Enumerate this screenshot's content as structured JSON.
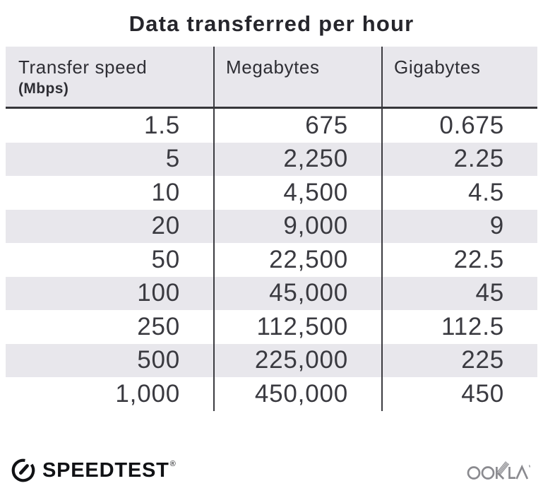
{
  "title": "Data transferred per hour",
  "table": {
    "columns": [
      {
        "label": "Transfer speed",
        "sublabel": "(Mbps)"
      },
      {
        "label": "Megabytes",
        "sublabel": ""
      },
      {
        "label": "Gigabytes",
        "sublabel": ""
      }
    ],
    "rows": [
      [
        "1.5",
        "675",
        "0.675"
      ],
      [
        "5",
        "2,250",
        "2.25"
      ],
      [
        "10",
        "4,500",
        "4.5"
      ],
      [
        "20",
        "9,000",
        "9"
      ],
      [
        "50",
        "22,500",
        "22.5"
      ],
      [
        "100",
        "45,000",
        "45"
      ],
      [
        "250",
        "112,500",
        "112.5"
      ],
      [
        "500",
        "225,000",
        "225"
      ],
      [
        "1,000",
        "450,000",
        "450"
      ]
    ]
  },
  "footer": {
    "speedtest_label": "SPEEDTEST",
    "registered_mark": "®",
    "ookla_label": "OOKLA",
    "speedtest_icon": "speedometer-gauge-icon",
    "ookla_icon": "ookla-wordmark-icon"
  },
  "colors": {
    "header_bg": "#e8e7ec",
    "stripe_bg": "#e8e7ec",
    "title_color": "#26262c",
    "header_text": "#2e2e34",
    "number_text": "#3a3a40",
    "divider": "#3c3c41",
    "header_rule": "#36363a",
    "logo_dark": "#111215",
    "ookla_gray": "#8a8a8f"
  },
  "chart_data": {
    "type": "table",
    "title": "Data transferred per hour",
    "columns": [
      "Transfer speed (Mbps)",
      "Megabytes",
      "Gigabytes"
    ],
    "rows": [
      [
        1.5,
        675,
        0.675
      ],
      [
        5,
        2250,
        2.25
      ],
      [
        10,
        4500,
        4.5
      ],
      [
        20,
        9000,
        9
      ],
      [
        50,
        22500,
        22.5
      ],
      [
        100,
        45000,
        45
      ],
      [
        250,
        112500,
        112.5
      ],
      [
        500,
        225000,
        225
      ],
      [
        1000,
        450000,
        450
      ]
    ],
    "layout_hints": {
      "striped_rows": "even data rows shaded light gray",
      "number_alignment": "right",
      "column_dividers": true
    }
  }
}
